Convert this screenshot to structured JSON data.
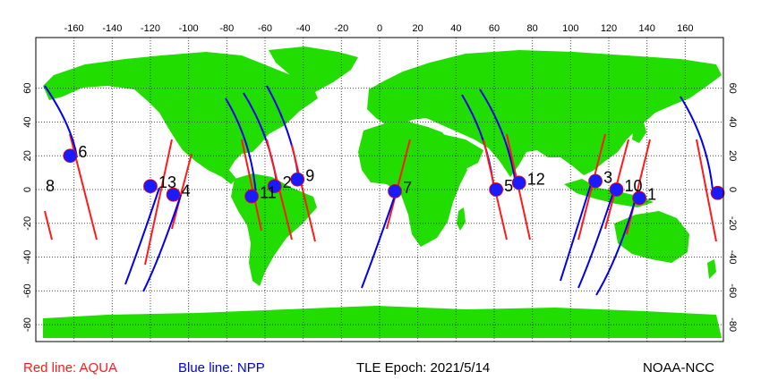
{
  "footer": {
    "aqua_legend": "Red line: AQUA",
    "npp_legend": "Blue line: NPP",
    "epoch": "TLE Epoch: 2021/5/14",
    "credit": "NOAA-NCC"
  },
  "axes": {
    "x_ticks": [
      -160,
      -140,
      -120,
      -100,
      -80,
      -60,
      -40,
      -20,
      0,
      20,
      40,
      60,
      80,
      100,
      120,
      140,
      160
    ],
    "y_ticks": [
      60,
      40,
      20,
      0,
      -20,
      -40,
      -60,
      -80
    ]
  },
  "colors": {
    "land": "#22dd00",
    "ocean": "#ffffff",
    "aqua_line": "#ff1a1a",
    "npp_line": "#0000ee",
    "marker": "#1a1aff"
  },
  "map": {
    "lon_range": [
      -180,
      180
    ],
    "lat_range": [
      -90,
      90
    ],
    "grid": "dotted"
  },
  "satellites": [
    {
      "label": "1",
      "lon": 136,
      "lat": -5
    },
    {
      "label": "2",
      "lon": -55,
      "lat": 2
    },
    {
      "label": "3",
      "lon": 113,
      "lat": 5
    },
    {
      "label": "4",
      "lon": -108,
      "lat": -3
    },
    {
      "label": "5",
      "lon": 61,
      "lat": 0
    },
    {
      "label": "6",
      "lon": -162,
      "lat": 20
    },
    {
      "label": "7",
      "lon": 8,
      "lat": -1
    },
    {
      "label": "8",
      "lon": -180,
      "lat": 0
    },
    {
      "label": "9",
      "lon": -43,
      "lat": 6
    },
    {
      "label": "10",
      "lon": 124,
      "lat": 0
    },
    {
      "label": "11",
      "lon": -67,
      "lat": -4
    },
    {
      "label": "12",
      "lon": 73,
      "lat": 4
    },
    {
      "label": "13",
      "lon": -120,
      "lat": 2
    },
    {
      "label": "",
      "lon": 177,
      "lat": -2
    }
  ]
}
